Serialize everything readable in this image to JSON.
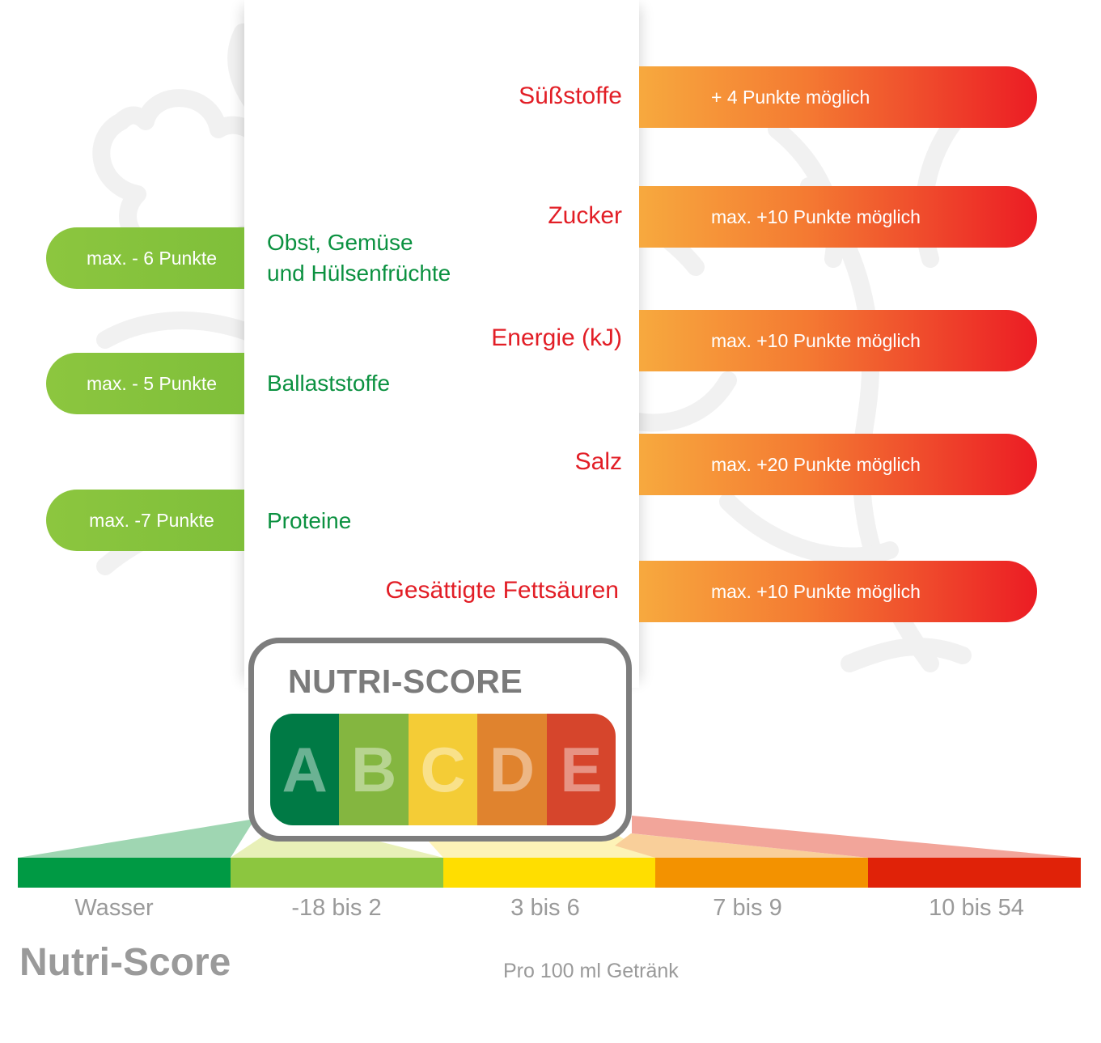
{
  "negative_components": [
    {
      "name": "Obst, Gemüse",
      "name2": "und Hülsenfrüchte",
      "points": "max. - 6 Punkte"
    },
    {
      "name": "Ballaststoffe",
      "points": "max. - 5 Punkte"
    },
    {
      "name": "Proteine",
      "points": "max. -7 Punkte"
    }
  ],
  "positive_components": [
    {
      "name": "Süßstoffe",
      "points": "+ 4 Punkte möglich"
    },
    {
      "name": "Zucker",
      "points": "max. +10 Punkte möglich"
    },
    {
      "name": "Energie (kJ)",
      "points": "max. +10 Punkte möglich"
    },
    {
      "name": "Salz",
      "points": "max. +20 Punkte möglich"
    },
    {
      "name": "Gesättigte Fettsäuren",
      "points": "max. +10 Punkte möglich"
    }
  ],
  "logo": {
    "title": "NUTRI-SCORE",
    "grades": [
      {
        "letter": "A",
        "color": "#007a45"
      },
      {
        "letter": "B",
        "color": "#84b640"
      },
      {
        "letter": "C",
        "color": "#f4cc36"
      },
      {
        "letter": "D",
        "color": "#e0832e"
      },
      {
        "letter": "E",
        "color": "#d6452c"
      }
    ]
  },
  "scale": {
    "colors": [
      "#009a44",
      "#8cc63f",
      "#ffde00",
      "#f39200",
      "#e02208"
    ],
    "labels": [
      "Wasser",
      "-18 bis 2",
      "3 bis 6",
      "7 bis 9",
      "10 bis 54"
    ]
  },
  "brand_title": "Nutri-Score",
  "footnote": "Pro 100 ml Getränk",
  "colors": {
    "negative_pill": "#8cc63f",
    "negative_text": "#0b9140",
    "positive_text": "#e21e26",
    "positive_pill_start": "#f7a93e",
    "positive_pill_end": "#ec1c24"
  }
}
